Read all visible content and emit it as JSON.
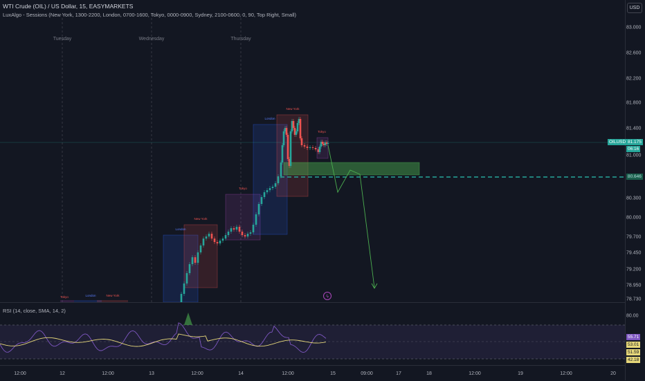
{
  "header": {
    "symbol_line": "WTI Crude (OIL) / US Dollar, 15, EASYMARKETS",
    "indicator_line": "LuxAlgo - Sessions (New York, 1300-2200, London, 0700-1600, Tokyo, 0000-0900, Sydney, 2100-0600, 0, 90, Top Right, Small)",
    "currency_button": "USD"
  },
  "day_labels": [
    "Tuesday",
    "Wednesday",
    "Thursday"
  ],
  "price_axis": [
    "83.000",
    "82.600",
    "82.200",
    "81.800",
    "81.400",
    "81.000",
    "80.300",
    "80.000",
    "79.700",
    "79.450",
    "79.200",
    "78.950",
    "78.730"
  ],
  "price_tags": {
    "symbol": "OILUSD",
    "last_price": "81.175",
    "countdown": "06:16",
    "level_line": "80.646"
  },
  "session_labels": {
    "london": "London",
    "new_york": "New York",
    "tokyo": "Tokyo"
  },
  "rsi": {
    "title": "RSI (14, close, SMA, 14, 2)",
    "axis": [
      "80.00"
    ],
    "tags": [
      "55.71",
      "53.01",
      "51.59",
      "42.18"
    ]
  },
  "time_axis": [
    "12:00",
    "12",
    "12:00",
    "13",
    "12:00",
    "14",
    "12:00",
    "15",
    "09:00",
    "17",
    "18",
    "12:00",
    "19",
    "12:00",
    "20"
  ],
  "colors": {
    "background": "#131722",
    "up_candle": "#26a69a",
    "down_candle": "#ef5350",
    "london_box": "#2962ff",
    "new_york_box": "#ef5350",
    "tokyo_box": "#ab47bc",
    "demand_zone": "#4caf50",
    "projection": "#4caf50",
    "rsi_line": "#7e57c2",
    "rsi_ma": "#ffeb3b"
  }
}
